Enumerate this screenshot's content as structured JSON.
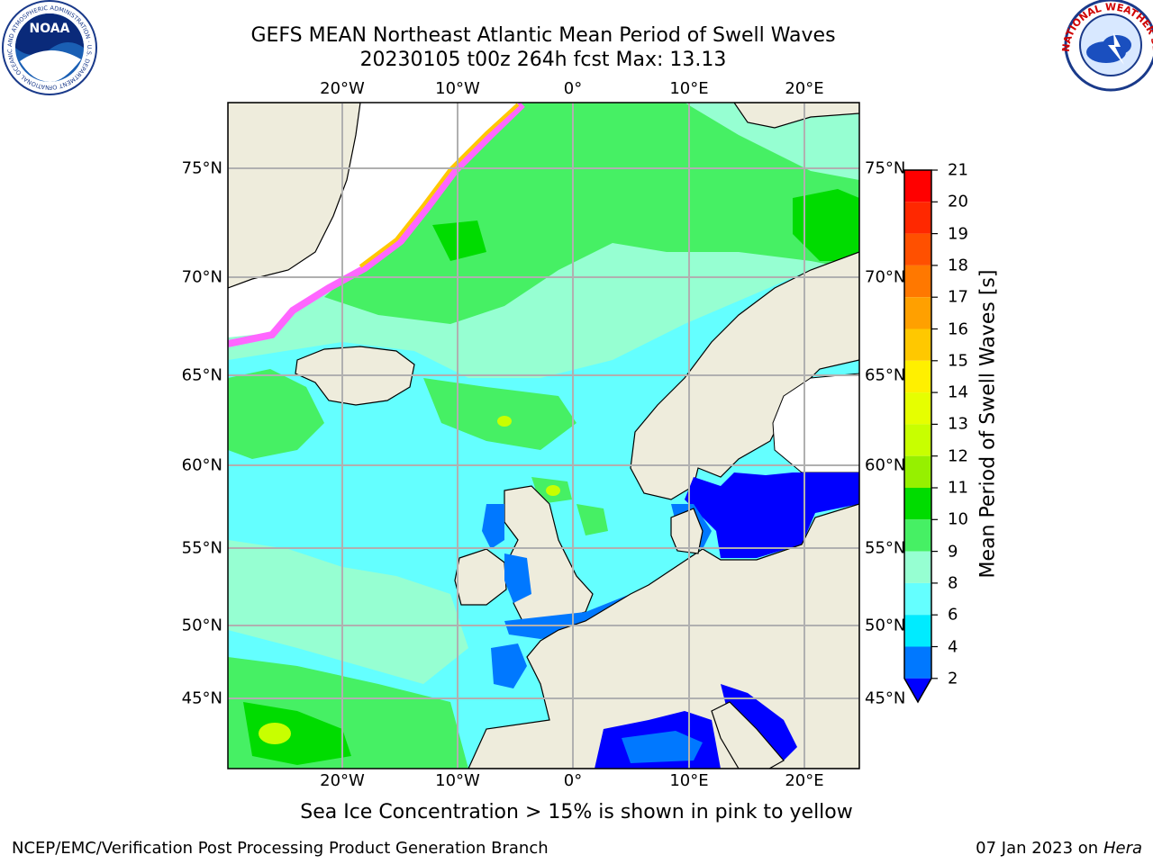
{
  "title": {
    "line1": "GEFS MEAN Northeast Atlantic Mean Period of Swell Waves",
    "line2": "20230105 t00z 264h fcst   Max: 13.13"
  },
  "map": {
    "lon_labels": [
      "20°W",
      "10°W",
      "0°",
      "10°E",
      "20°E"
    ],
    "lat_labels": [
      "75°N",
      "70°N",
      "65°N",
      "60°N",
      "55°N",
      "50°N",
      "45°N"
    ]
  },
  "colorbar": {
    "label": "Mean Period of Swell Waves [s]",
    "ticks": [
      "21",
      "20",
      "19",
      "18",
      "17",
      "16",
      "15",
      "14",
      "13",
      "12",
      "11",
      "10",
      "9",
      "8",
      "6",
      "4",
      "2"
    ],
    "colors": [
      "#ff0000",
      "#ff2800",
      "#ff5000",
      "#ff7800",
      "#ffa000",
      "#ffc800",
      "#fff000",
      "#e6ff00",
      "#c8ff00",
      "#96f000",
      "#64e600",
      "#00dc00",
      "#46f064",
      "#96ffd2",
      "#64ffff",
      "#00ebff",
      "#0078ff",
      "#0000ff"
    ]
  },
  "logos": {
    "noaa_text": "NOAA",
    "noaa_ring": "NATIONAL OCEANIC AND ATMOSPHERIC ADMINISTRATION · U.S. DEPARTMENT OF COMMERCE ·",
    "nws_ring": "NATIONAL WEATHER SERVICE"
  },
  "note": "Sea Ice Concentration > 15% is shown in pink to yellow",
  "footer": {
    "left": "NCEP/EMC/Verification Post Processing Product Generation Branch",
    "right_date": "07 Jan 2023 on",
    "right_host": "Hera"
  },
  "colors": {
    "land": "#eeecdc",
    "ice_white": "#ffffff",
    "grid": "#b0b0b0"
  }
}
